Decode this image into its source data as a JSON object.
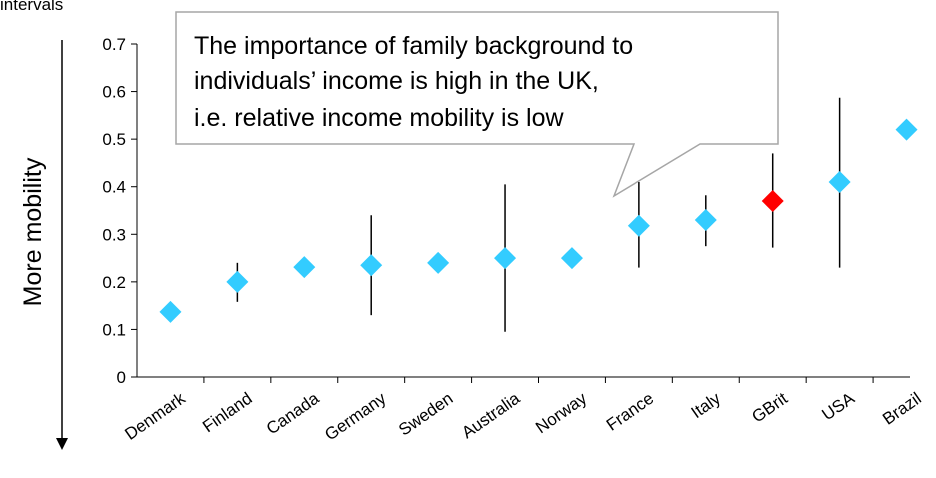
{
  "header_text": "intervals",
  "annotation": {
    "lines": [
      "The importance of family background to",
      "individuals’ income is high in the UK,",
      "i.e. relative income mobility is low"
    ]
  },
  "colors": {
    "point": "#33CCFF",
    "highlight": "#FF0000",
    "error_bar": "#000000",
    "callout_border": "#A6A6A6"
  },
  "chart_data": {
    "type": "scatter",
    "title": "",
    "xlabel": "",
    "ylabel": "More mobility",
    "ylim": [
      0,
      0.7
    ],
    "yticks": [
      "0",
      "0.1",
      "0.2",
      "0.3",
      "0.4",
      "0.5",
      "0.6",
      "0.7"
    ],
    "grid": false,
    "categories": [
      "Denmark",
      "Finland",
      "Canada",
      "Germany",
      "Sweden",
      "Australia",
      "Norway",
      "France",
      "Italy",
      "GBrit",
      "USA",
      "Brazil"
    ],
    "values": [
      0.137,
      0.2,
      0.231,
      0.235,
      0.24,
      0.25,
      0.25,
      0.318,
      0.33,
      0.37,
      0.41,
      0.52
    ],
    "ci_lower": [
      null,
      0.158,
      null,
      0.13,
      null,
      0.095,
      null,
      0.23,
      0.275,
      0.272,
      0.23,
      null
    ],
    "ci_upper": [
      null,
      0.24,
      null,
      0.34,
      null,
      0.405,
      null,
      0.41,
      0.382,
      0.47,
      0.587,
      null
    ],
    "highlight": [
      "GBrit"
    ]
  }
}
